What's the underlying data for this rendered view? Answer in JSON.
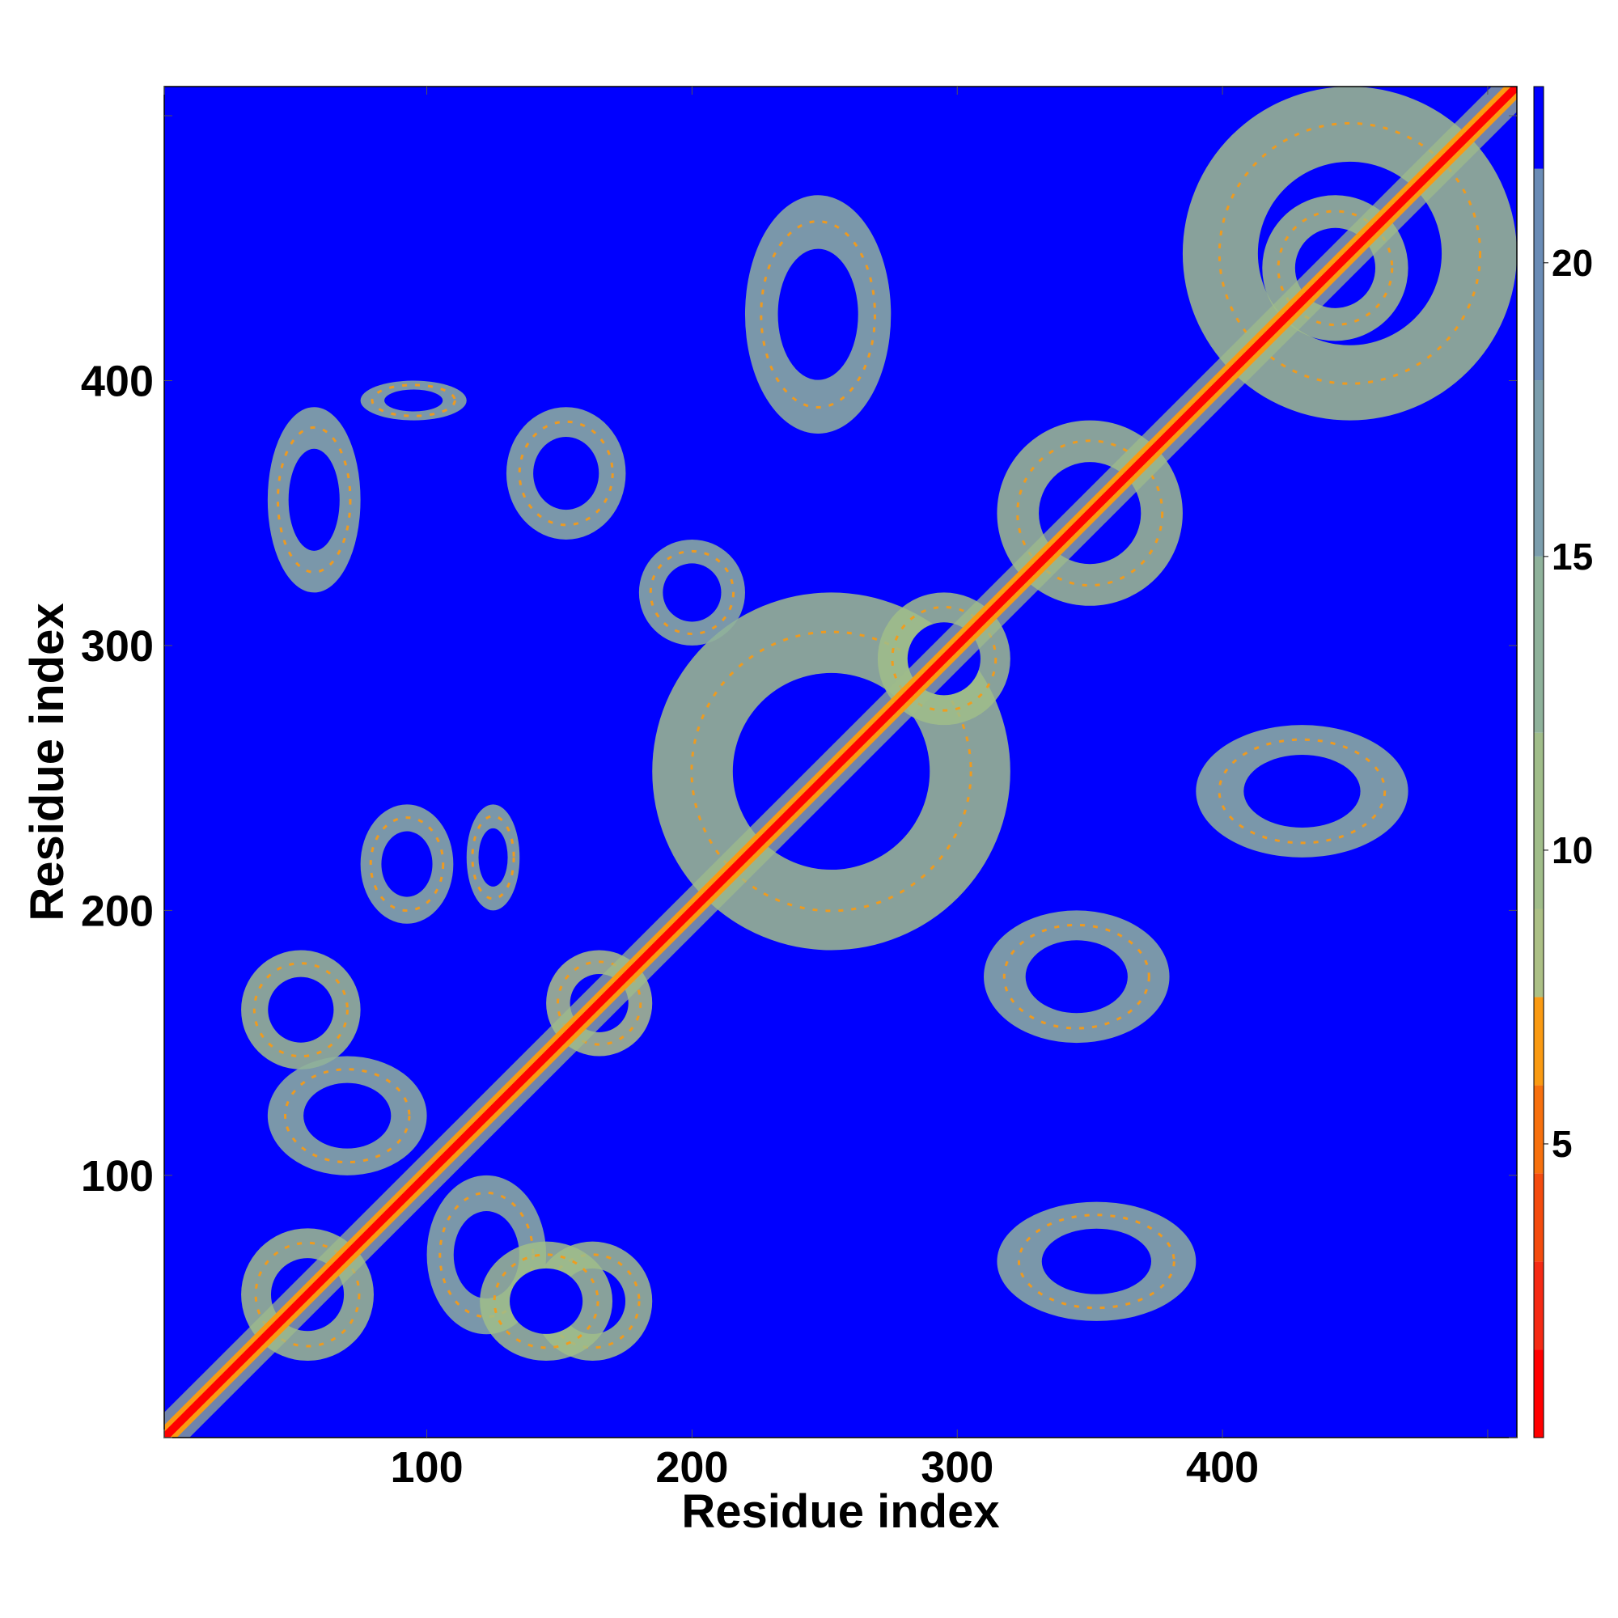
{
  "chart_data": {
    "type": "heatmap",
    "title": "",
    "xlabel": "Residue index",
    "ylabel": "Residue index",
    "xlim": [
      1,
      511
    ],
    "ylim": [
      1,
      511
    ],
    "x_ticks": [
      100,
      200,
      300,
      400
    ],
    "y_ticks": [
      100,
      200,
      300,
      400
    ],
    "x_minor_ticks": [
      1,
      100,
      200,
      300,
      400,
      500
    ],
    "y_minor_ticks": [
      1,
      100,
      200,
      300,
      400,
      500
    ],
    "colorbar": {
      "ticks": [
        5,
        10,
        15,
        20
      ],
      "range": [
        0,
        23
      ],
      "levels": [
        {
          "from": 0,
          "to": 1.5,
          "color": "#ff0000"
        },
        {
          "from": 1.5,
          "to": 3.0,
          "color": "#f52a14"
        },
        {
          "from": 3.0,
          "to": 4.5,
          "color": "#f44b0e"
        },
        {
          "from": 4.5,
          "to": 6.0,
          "color": "#f7700d"
        },
        {
          "from": 6.0,
          "to": 7.5,
          "color": "#fa9a12"
        },
        {
          "from": 7.5,
          "to": 9.0,
          "color": "#acc086"
        },
        {
          "from": 9.0,
          "to": 12.0,
          "color": "#a0bd8a"
        },
        {
          "from": 12.0,
          "to": 15.0,
          "color": "#8fb29b"
        },
        {
          "from": 15.0,
          "to": 18.0,
          "color": "#7c9ead"
        },
        {
          "from": 18.0,
          "to": 21.6,
          "color": "#6a8cb6"
        },
        {
          "from": 21.6,
          "to": 23.0,
          "color": "#0000ff"
        }
      ]
    },
    "background_color": "#0000ff",
    "description_values": {
      "diagonal_distance": 0,
      "cutoff_value": 23,
      "contact_blocks": [
        {
          "x": [
            30,
            80
          ],
          "y": [
            30,
            80
          ],
          "value": 10
        },
        {
          "x": [
            30,
            75
          ],
          "y": [
            140,
            185
          ],
          "value": 11
        },
        {
          "x": [
            140,
            185
          ],
          "y": [
            30,
            75
          ],
          "value": 11
        },
        {
          "x": [
            100,
            145
          ],
          "y": [
            40,
            100
          ],
          "value": 12
        },
        {
          "x": [
            40,
            100
          ],
          "y": [
            100,
            145
          ],
          "value": 12
        },
        {
          "x": [
            145,
            185
          ],
          "y": [
            145,
            185
          ],
          "value": 8
        },
        {
          "x": [
            185,
            320
          ],
          "y": [
            185,
            320
          ],
          "value": 11
        },
        {
          "x": [
            270,
            320
          ],
          "y": [
            270,
            320
          ],
          "value": 9
        },
        {
          "x": [
            315,
            385
          ],
          "y": [
            315,
            385
          ],
          "value": 10
        },
        {
          "x": [
            385,
            511
          ],
          "y": [
            385,
            511
          ],
          "value": 11
        },
        {
          "x": [
            415,
            470
          ],
          "y": [
            415,
            470
          ],
          "value": 9
        },
        {
          "x": [
            40,
            75
          ],
          "y": [
            320,
            390
          ],
          "value": 13
        },
        {
          "x": [
            75,
            115
          ],
          "y": [
            385,
            400
          ],
          "value": 14
        },
        {
          "x": [
            75,
            110
          ],
          "y": [
            195,
            240
          ],
          "value": 13
        },
        {
          "x": [
            115,
            135
          ],
          "y": [
            200,
            240
          ],
          "value": 14
        },
        {
          "x": [
            220,
            275
          ],
          "y": [
            380,
            470
          ],
          "value": 14
        },
        {
          "x": [
            310,
            380
          ],
          "y": [
            150,
            200
          ],
          "value": 12
        },
        {
          "x": [
            390,
            470
          ],
          "y": [
            220,
            270
          ],
          "value": 13
        },
        {
          "x": [
            315,
            390
          ],
          "y": [
            45,
            90
          ],
          "value": 12
        },
        {
          "x": [
            120,
            170
          ],
          "y": [
            30,
            75
          ],
          "value": 11
        },
        {
          "x": [
            130,
            175
          ],
          "y": [
            340,
            390
          ],
          "value": 13
        },
        {
          "x": [
            180,
            220
          ],
          "y": [
            300,
            340
          ],
          "value": 12
        }
      ]
    }
  }
}
